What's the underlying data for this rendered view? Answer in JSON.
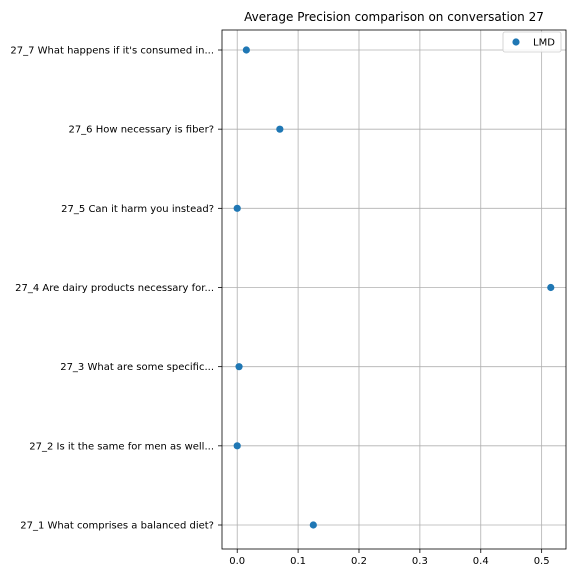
{
  "chart_data": {
    "type": "scatter",
    "title": "Average Precision comparison on conversation 27",
    "xlabel": "",
    "ylabel": "",
    "xlim": [
      -0.025,
      0.54
    ],
    "x_ticks": [
      0.0,
      0.1,
      0.2,
      0.3,
      0.4,
      0.5
    ],
    "x_tick_labels": [
      "0.0",
      "0.1",
      "0.2",
      "0.3",
      "0.4",
      "0.5"
    ],
    "categories": [
      "27_1 What comprises a balanced diet?",
      "27_2 Is it the same for men as well...",
      "27_3 What are some specific...",
      "27_4 Are dairy products necessary for...",
      "27_5 Can it harm you instead?",
      "27_6 How necessary is fiber?",
      "27_7 What happens if it's consumed in..."
    ],
    "series": [
      {
        "name": "LMD",
        "color": "#1f77b4",
        "values": [
          0.125,
          0.0,
          0.003,
          0.515,
          0.0,
          0.07,
          0.015
        ]
      }
    ],
    "grid": true,
    "legend_position": "top-right"
  }
}
